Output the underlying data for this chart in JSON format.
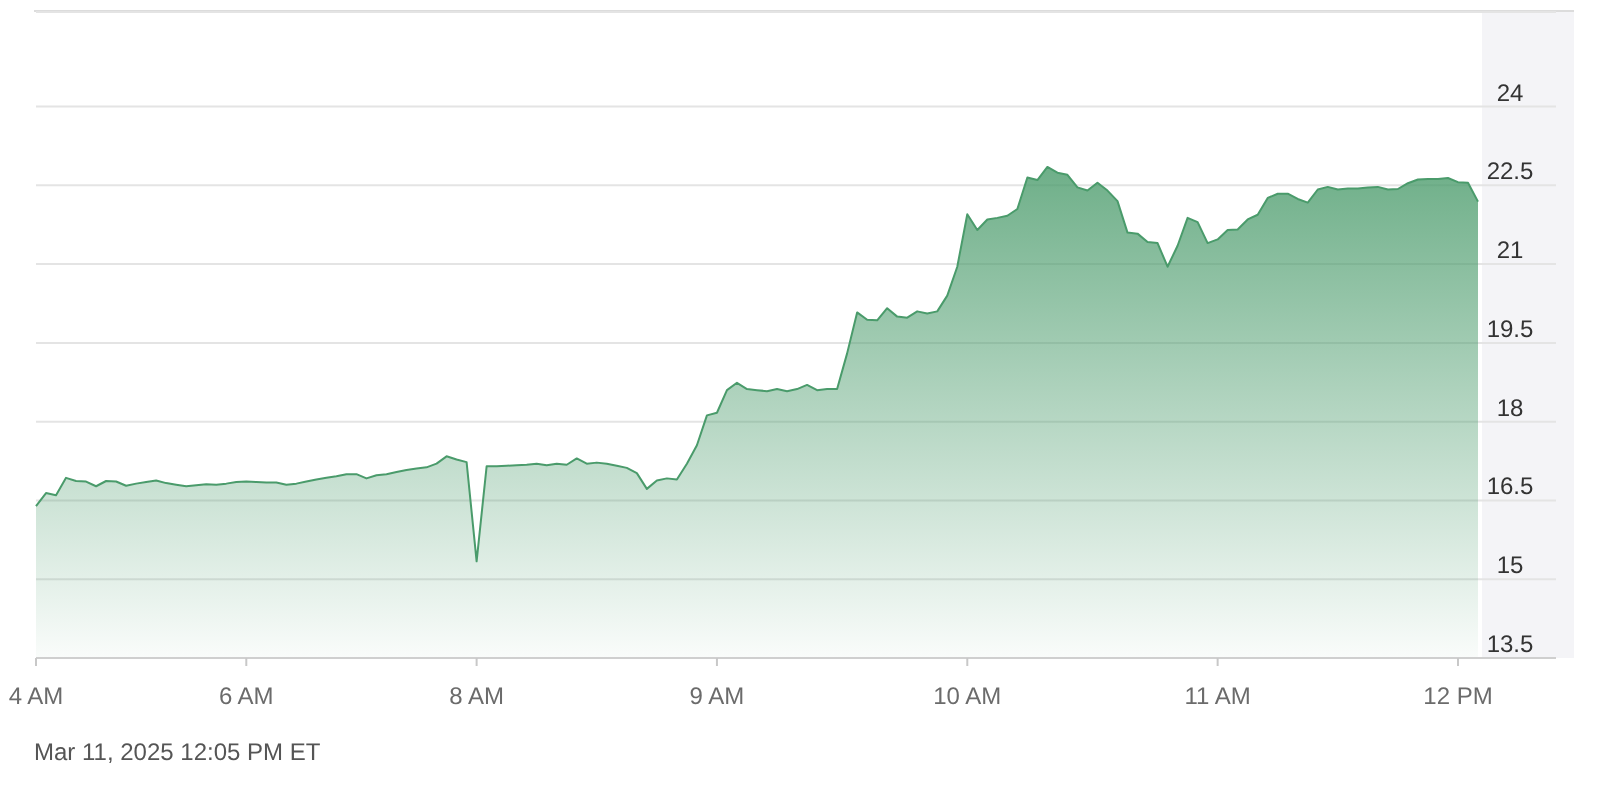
{
  "chart_data": {
    "type": "area",
    "color": "#4a9b6b",
    "categories": [
      "4 AM",
      null,
      null,
      null,
      null,
      null,
      null,
      null,
      null,
      null,
      null,
      null,
      null,
      null,
      null,
      null,
      null,
      null,
      null,
      null,
      null,
      "6 AM",
      null,
      null,
      null,
      null,
      null,
      null,
      null,
      null,
      null,
      null,
      null,
      null,
      null,
      null,
      null,
      null,
      null,
      null,
      null,
      null,
      null,
      null,
      "8 AM",
      null,
      null,
      null,
      null,
      null,
      null,
      null,
      null,
      null,
      null,
      null,
      null,
      null,
      null,
      null,
      null,
      null,
      null,
      null,
      null,
      null,
      null,
      null,
      "9 AM",
      null,
      null,
      null,
      null,
      null,
      null,
      null,
      null,
      null,
      null,
      null,
      null,
      null,
      null,
      null,
      null,
      null,
      null,
      null,
      null,
      null,
      null,
      null,
      null,
      "10 AM",
      null,
      null,
      null,
      null,
      null,
      null,
      null,
      null,
      null,
      null,
      null,
      null,
      null,
      null,
      null,
      null,
      null,
      null,
      null,
      null,
      null,
      null,
      null,
      null,
      "11 AM",
      null,
      null,
      null,
      null,
      null,
      null,
      null,
      null,
      null,
      null,
      null,
      null,
      null,
      null,
      null,
      null,
      null,
      null,
      null,
      null,
      null,
      null,
      null,
      "12 PM",
      null,
      null
    ],
    "values": [
      16.39,
      16.64,
      16.6,
      16.93,
      16.87,
      16.86,
      16.77,
      16.87,
      16.86,
      16.78,
      16.82,
      16.85,
      16.88,
      16.83,
      16.8,
      16.77,
      16.79,
      16.81,
      16.8,
      16.82,
      16.85,
      16.86,
      16.85,
      16.84,
      16.84,
      16.8,
      16.82,
      16.86,
      16.9,
      16.93,
      16.96,
      17.0,
      17.0,
      16.92,
      16.98,
      17.0,
      17.04,
      17.08,
      17.11,
      17.13,
      17.2,
      17.34,
      17.28,
      17.23,
      15.34,
      17.15,
      17.15,
      17.16,
      17.17,
      17.18,
      17.2,
      17.17,
      17.2,
      17.18,
      17.3,
      17.2,
      17.22,
      17.2,
      17.16,
      17.12,
      17.02,
      16.72,
      16.88,
      16.92,
      16.9,
      17.2,
      17.55,
      18.12,
      18.17,
      18.6,
      18.74,
      18.62,
      18.6,
      18.58,
      18.62,
      18.58,
      18.62,
      18.7,
      18.6,
      18.62,
      18.62,
      19.3,
      20.08,
      19.94,
      19.93,
      20.16,
      20.0,
      19.98,
      20.1,
      20.06,
      20.1,
      20.4,
      20.95,
      21.95,
      21.65,
      21.85,
      21.88,
      21.92,
      22.05,
      22.65,
      22.6,
      22.85,
      22.74,
      22.7,
      22.46,
      22.4,
      22.55,
      22.4,
      22.2,
      21.6,
      21.58,
      21.42,
      21.4,
      20.95,
      21.35,
      21.88,
      21.8,
      21.4,
      21.47,
      21.65,
      21.66,
      21.85,
      21.94,
      22.26,
      22.34,
      22.34,
      22.24,
      22.17,
      22.42,
      22.47,
      22.42,
      22.44,
      22.44,
      22.46,
      22.47,
      22.42,
      22.43,
      22.54,
      22.61,
      22.62,
      22.62,
      22.64,
      22.56,
      22.55,
      22.19
    ],
    "ylim": [
      13.5,
      25.8
    ],
    "yticks": [
      13.5,
      15,
      16.5,
      18,
      19.5,
      21,
      22.5,
      24
    ],
    "grid": "y",
    "annotations": [
      "Mar 11, 2025 12:05 PM ET"
    ]
  }
}
